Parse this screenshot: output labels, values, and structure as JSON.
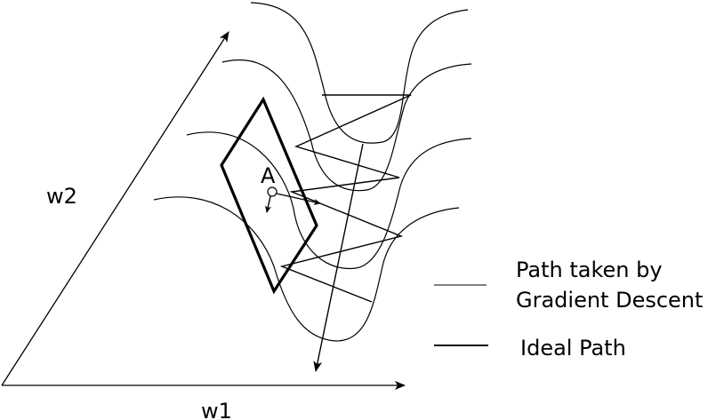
{
  "axes": {
    "w1_label": "w1",
    "w2_label": "w2"
  },
  "point": {
    "label": "A"
  },
  "legend": {
    "gradient_line1": "Path taken by",
    "gradient_line2": "Gradient Descent",
    "ideal": "Ideal Path"
  }
}
